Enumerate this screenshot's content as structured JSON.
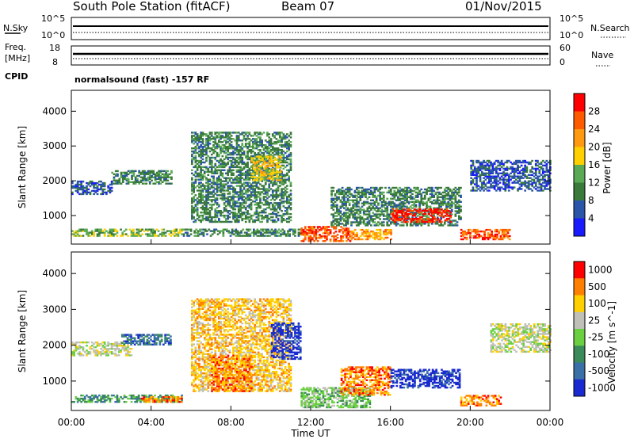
{
  "header": {
    "station": "South Pole Station (fitACF)",
    "beam": "Beam 07",
    "date": "01/Nov/2015"
  },
  "status_panels": {
    "nsky_label": "N.Sky",
    "nsky_ticks": [
      "10^5",
      "10^0"
    ],
    "nsearch_label": "N.Search",
    "nsearch_ticks": [
      "10^5",
      "10^0"
    ],
    "freq_label_line1": "Freq.",
    "freq_label_line2": "[MHz]",
    "freq_ticks": [
      "18",
      "8"
    ],
    "nave_label": "Nave",
    "nave_ticks": [
      "60",
      "0"
    ],
    "cpid_label": "CPID",
    "cpid_text": "normalsound (fast) -157 RF"
  },
  "chart_data": [
    {
      "type": "heatmap",
      "name": "power",
      "ylabel": "Slant Range [km]",
      "y_ticks": [
        1000,
        2000,
        3000,
        4000
      ],
      "ylim": [
        180,
        4600
      ],
      "xlim_hours": [
        0,
        24
      ],
      "colorbar": {
        "label": "Power [dB]",
        "tick_labels": [
          "4",
          "8",
          "12",
          "16",
          "20",
          "24",
          "28"
        ],
        "colors": [
          "#1a1aff",
          "#2a55a8",
          "#3a7a3a",
          "#5aaa55",
          "#ffd000",
          "#ff9a10",
          "#ff5a00",
          "#ff0000"
        ]
      },
      "echo_regions": [
        {
          "t0": 0.0,
          "t1": 5.5,
          "r0": 400,
          "r1": 600,
          "level": 3
        },
        {
          "t0": 0.0,
          "t1": 2.0,
          "r0": 1600,
          "r1": 2000,
          "level": 1
        },
        {
          "t0": 2.0,
          "t1": 5.0,
          "r0": 1900,
          "r1": 2300,
          "level": 2
        },
        {
          "t0": 5.5,
          "t1": 11.5,
          "r0": 400,
          "r1": 600,
          "level": 2
        },
        {
          "t0": 6.0,
          "t1": 11.0,
          "r0": 800,
          "r1": 3400,
          "level": 2
        },
        {
          "t0": 9.0,
          "t1": 10.5,
          "r0": 2000,
          "r1": 2700,
          "level": 4
        },
        {
          "t0": 11.5,
          "t1": 14.0,
          "r0": 250,
          "r1": 700,
          "level": 6
        },
        {
          "t0": 14.0,
          "t1": 16.0,
          "r0": 300,
          "r1": 600,
          "level": 5
        },
        {
          "t0": 13.0,
          "t1": 19.5,
          "r0": 700,
          "r1": 1800,
          "level": 2
        },
        {
          "t0": 16.0,
          "t1": 19.0,
          "r0": 800,
          "r1": 1200,
          "level": 7
        },
        {
          "t0": 19.5,
          "t1": 22.0,
          "r0": 300,
          "r1": 600,
          "level": 6
        },
        {
          "t0": 20.0,
          "t1": 24.0,
          "r0": 1700,
          "r1": 2600,
          "level": 1
        }
      ]
    },
    {
      "type": "heatmap",
      "name": "velocity",
      "ylabel": "Slant Range [km]",
      "y_ticks": [
        1000,
        2000,
        3000,
        4000
      ],
      "ylim": [
        180,
        4600
      ],
      "xlim_hours": [
        0,
        24
      ],
      "colorbar": {
        "label": "Velocity [m s^-1]",
        "tick_labels": [
          "1000",
          "500",
          "100",
          "25",
          "-25",
          "-100",
          "-500",
          "-1000"
        ],
        "colors": [
          "#1a2ad0",
          "#3a70a8",
          "#3a8a5a",
          "#6ad040",
          "#c0c0b8",
          "#ffd000",
          "#ff8000",
          "#ff0000"
        ]
      },
      "echo_regions": [
        {
          "t0": 0.0,
          "t1": 5.5,
          "r0": 400,
          "r1": 600,
          "level": 2
        },
        {
          "t0": 0.0,
          "t1": 3.0,
          "r0": 1700,
          "r1": 2100,
          "level": 4
        },
        {
          "t0": 2.5,
          "t1": 5.0,
          "r0": 2000,
          "r1": 2300,
          "level": 1
        },
        {
          "t0": 3.5,
          "t1": 5.5,
          "r0": 400,
          "r1": 550,
          "level": 6
        },
        {
          "t0": 6.0,
          "t1": 11.0,
          "r0": 700,
          "r1": 3300,
          "level": 5
        },
        {
          "t0": 7.0,
          "t1": 9.0,
          "r0": 700,
          "r1": 1700,
          "level": 6
        },
        {
          "t0": 10.0,
          "t1": 11.5,
          "r0": 1600,
          "r1": 2600,
          "level": 0
        },
        {
          "t0": 11.5,
          "t1": 15.0,
          "r0": 250,
          "r1": 800,
          "level": 3
        },
        {
          "t0": 13.5,
          "t1": 16.0,
          "r0": 600,
          "r1": 1400,
          "level": 6
        },
        {
          "t0": 16.0,
          "t1": 19.5,
          "r0": 800,
          "r1": 1300,
          "level": 0
        },
        {
          "t0": 19.5,
          "t1": 21.5,
          "r0": 300,
          "r1": 600,
          "level": 6
        },
        {
          "t0": 21.0,
          "t1": 24.0,
          "r0": 1800,
          "r1": 2600,
          "level": 4
        }
      ]
    }
  ],
  "x_axis": {
    "tick_labels": [
      "00:00",
      "04:00",
      "08:00",
      "12:00",
      "16:00",
      "20:00",
      "00:00"
    ],
    "label": "Time UT"
  }
}
